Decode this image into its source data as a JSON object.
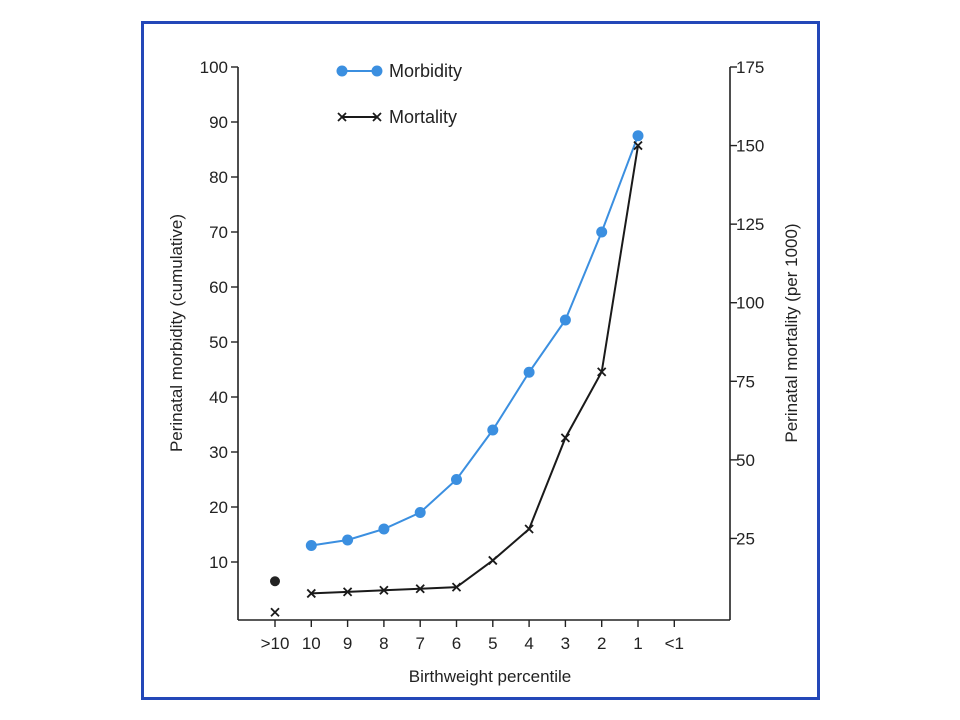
{
  "chart_data": {
    "type": "line",
    "categories": [
      ">10",
      "10",
      "9",
      "8",
      "7",
      "6",
      "5",
      "4",
      "3",
      "2",
      "1",
      "<1"
    ],
    "xlabel": "Birthweight percentile",
    "ylabel_left": "Perinatal morbidity (cumulative)",
    "ylabel_right": "Perinatal mortality (per 1000)",
    "ylim_left": [
      0,
      100
    ],
    "ylim_right": [
      0,
      175
    ],
    "yticks_left": [
      10,
      20,
      30,
      40,
      50,
      60,
      70,
      80,
      90,
      100
    ],
    "yticks_right": [
      25,
      50,
      75,
      100,
      125,
      150,
      175
    ],
    "grid": false,
    "legend_placement": "top",
    "series": [
      {
        "name": "Morbidity",
        "axis": "left",
        "marker": "circle",
        "color": "#3b8fe0",
        "values": [
          null,
          13,
          14,
          16,
          19,
          25,
          34,
          44.5,
          54,
          70,
          87.5,
          null
        ]
      },
      {
        "name": "Mortality",
        "axis": "right",
        "marker": "x",
        "color": "#1a1a1a",
        "values": [
          null,
          7.5,
          8,
          8.5,
          9,
          9.5,
          18,
          28,
          57,
          78,
          150,
          null
        ]
      }
    ],
    "unconnected_points": [
      {
        "category": ">10",
        "value_left": 6.5,
        "marker": "dot",
        "color": "#222222"
      },
      {
        "category": ">10",
        "value_right": 1.5,
        "marker": "x",
        "color": "#1a1a1a"
      }
    ]
  }
}
